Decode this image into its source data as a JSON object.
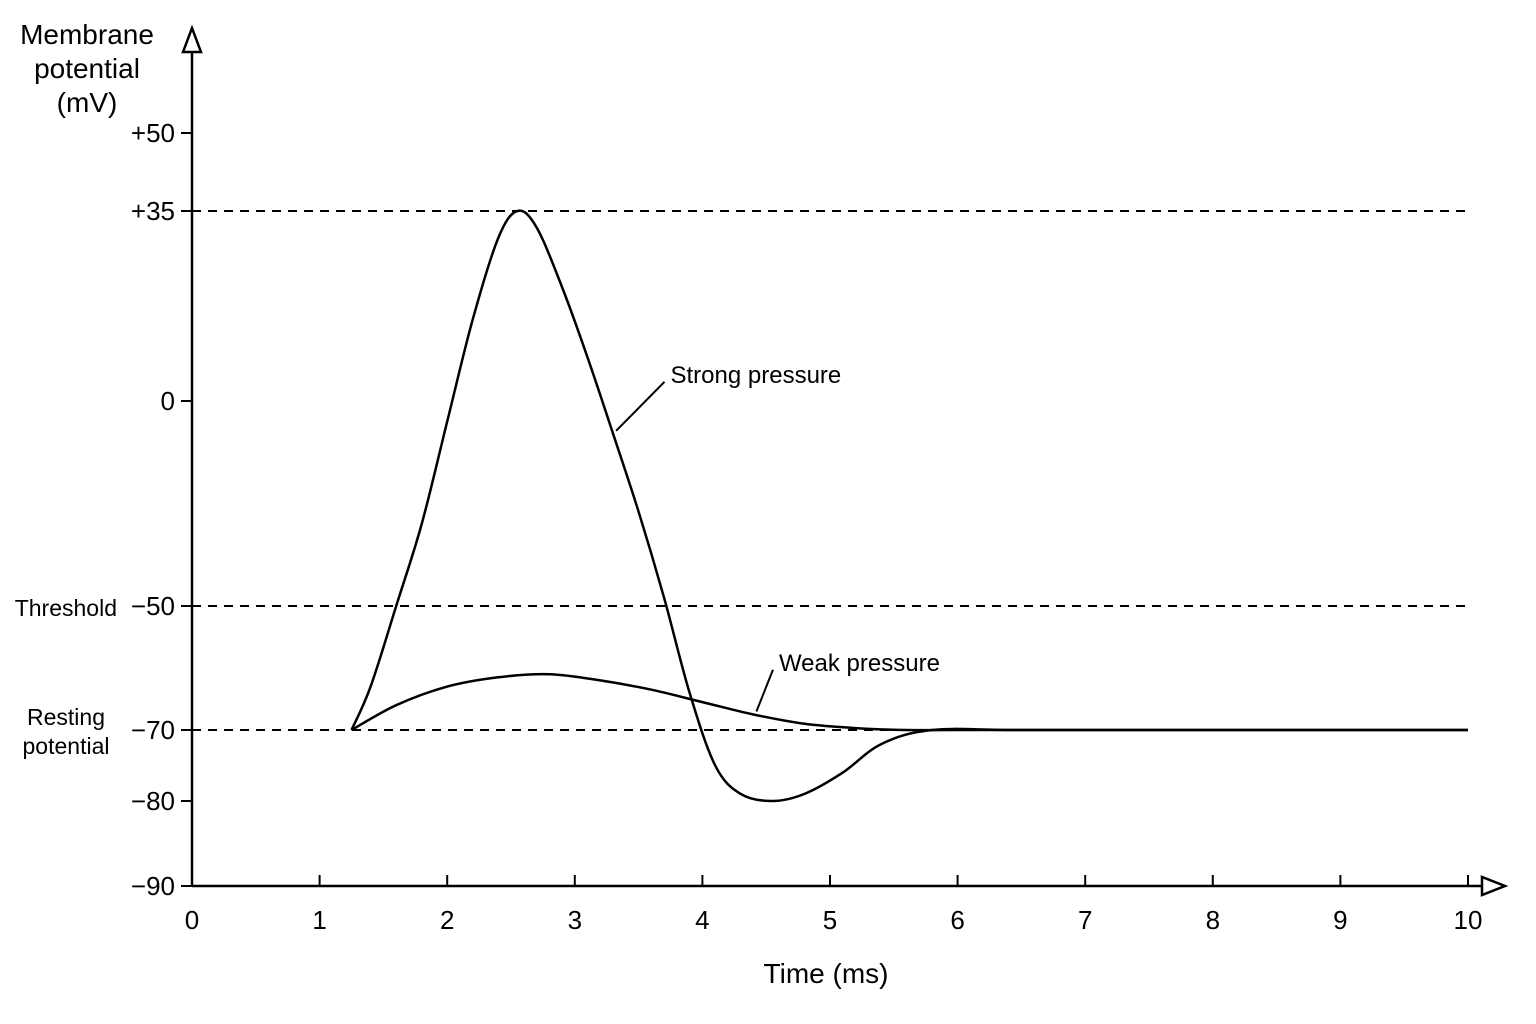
{
  "chart_data": {
    "type": "line",
    "xlabel": "Time (ms)",
    "ylabel_lines": [
      "Membrane",
      "potential",
      "(mV)"
    ],
    "xlim": [
      0,
      10
    ],
    "ylim": [
      -90,
      60
    ],
    "x_ticks": [
      0,
      1,
      2,
      3,
      4,
      5,
      6,
      7,
      8,
      9,
      10
    ],
    "y_ticks": [
      {
        "value": 50,
        "label": "+50"
      },
      {
        "value": 35,
        "label": "+35"
      },
      {
        "value": 0,
        "label": "0"
      },
      {
        "value": -50,
        "label": "−50"
      },
      {
        "value": -70,
        "label": "−70"
      },
      {
        "value": -80,
        "label": "−80"
      },
      {
        "value": -90,
        "label": "−90"
      }
    ],
    "reference_lines": [
      {
        "value": 35,
        "style": "dashed"
      },
      {
        "value": -50,
        "style": "dashed",
        "label": "Threshold"
      },
      {
        "value": -70,
        "style": "dashed",
        "label": "Resting potential"
      }
    ],
    "side_labels": {
      "threshold": "Threshold",
      "resting_line1": "Resting",
      "resting_line2": "potential"
    },
    "series": [
      {
        "name": "Strong pressure",
        "x": [
          1.25,
          1.4,
          1.6,
          1.8,
          2.0,
          2.2,
          2.4,
          2.55,
          2.7,
          2.9,
          3.1,
          3.3,
          3.5,
          3.7,
          3.9,
          4.1,
          4.3,
          4.55,
          4.8,
          5.1,
          5.4,
          5.8,
          6.5,
          8.0,
          10.0
        ],
        "y": [
          -70,
          -63,
          -50,
          -30,
          -5,
          15,
          30,
          35,
          32,
          21,
          8,
          -8,
          -27,
          -48,
          -64,
          -75,
          -79,
          -80,
          -79,
          -76,
          -72,
          -70,
          -70,
          -70,
          -70
        ],
        "label_x": 3.75,
        "label_y": 5
      },
      {
        "name": "Weak pressure",
        "x": [
          1.25,
          1.6,
          2.0,
          2.4,
          2.8,
          3.2,
          3.6,
          4.0,
          4.4,
          4.8,
          5.2,
          5.6,
          6.0,
          7.0,
          10.0
        ],
        "y": [
          -70,
          -66,
          -63,
          -61.5,
          -61,
          -62,
          -63.5,
          -65.5,
          -67.5,
          -69,
          -69.7,
          -70,
          -70,
          -70,
          -70
        ],
        "label_x": 4.6,
        "label_y": -59
      }
    ]
  }
}
